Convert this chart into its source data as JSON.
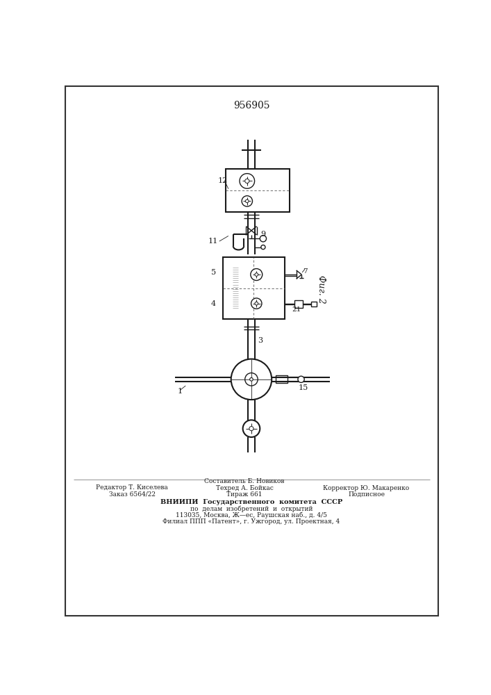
{
  "patent_number": "956905",
  "fig_label": "Фиг. 2",
  "background_color": "#ffffff",
  "line_color": "#1a1a1a",
  "footer_line1_left": "Редактор Т. Киселева",
  "footer_line2_left": "Заказ 6564/22",
  "footer_line1_center": "Составитель Б. Новиков",
  "footer_line2_center": "Техред А. Бойкас",
  "footer_line3_center": "Тираж 661",
  "footer_line1_right": "Корректор Ю. Макаренко",
  "footer_line2_right": "Подписное",
  "footer_vnipi1": "ВНИИПИ  Государственного  комитета  СССР",
  "footer_vnipi2": "по  делам  изобретений  и  открытий",
  "footer_vnipi3": "113035, Москва, Ж—ес, Раушская наб., д. 4/5",
  "footer_vnipi4": "Филиал ППП «Патент», г. Ужгород, ул. Проектная, 4"
}
